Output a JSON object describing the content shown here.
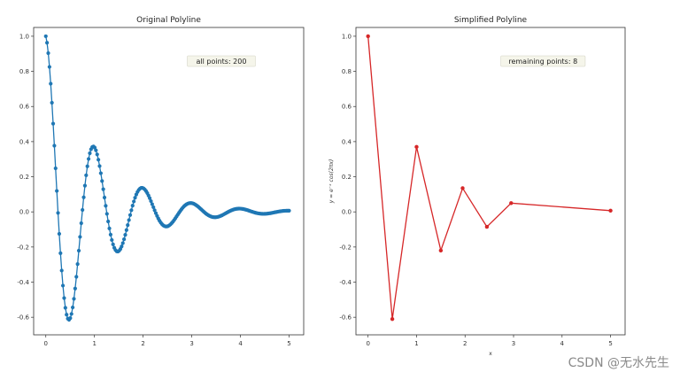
{
  "watermark": "CSDN @无水先生",
  "chart_data": [
    {
      "type": "line",
      "title": "Original Polyline",
      "xlabel": "",
      "ylabel": "",
      "xlim": [
        -0.25,
        5.3
      ],
      "ylim": [
        -0.7,
        1.05
      ],
      "xticks": [
        0,
        1,
        2,
        3,
        4,
        5
      ],
      "yticks": [
        -0.6,
        -0.4,
        -0.2,
        0.0,
        0.2,
        0.4,
        0.6,
        0.8,
        1.0
      ],
      "ytick_labels": [
        "-0.6",
        "-0.4",
        "-0.2",
        "0.0",
        "0.2",
        "0.4",
        "0.6",
        "0.8",
        "1.0"
      ],
      "grid": false,
      "annotation": "all points: 200",
      "series": [
        {
          "color": "#1f77b4",
          "marker": "circle",
          "function": "exp(-x)*cos(2*pi*x)",
          "x_range": [
            0,
            5
          ],
          "n_points": 200
        }
      ]
    },
    {
      "type": "line",
      "title": "Simplified Polyline",
      "xlabel": "x",
      "ylabel": "y = e⁻ˣ cos(2πx)",
      "xlim": [
        -0.25,
        5.3
      ],
      "ylim": [
        -0.7,
        1.05
      ],
      "xticks": [
        0,
        1,
        2,
        3,
        4,
        5
      ],
      "yticks": [
        -0.6,
        -0.4,
        -0.2,
        0.0,
        0.2,
        0.4,
        0.6,
        0.8,
        1.0
      ],
      "ytick_labels": [
        "-0.6",
        "-0.4",
        "-0.2",
        "0.0",
        "0.2",
        "0.4",
        "0.6",
        "0.8",
        "1.0"
      ],
      "grid": false,
      "annotation": "remaining points: 8",
      "series": [
        {
          "color": "#d62728",
          "marker": "circle",
          "x": [
            0,
            0.5,
            1.0,
            1.5,
            1.95,
            2.45,
            2.95,
            5.0
          ],
          "y": [
            1.0,
            -0.61,
            0.37,
            -0.22,
            0.135,
            -0.085,
            0.05,
            0.007
          ]
        }
      ]
    }
  ]
}
